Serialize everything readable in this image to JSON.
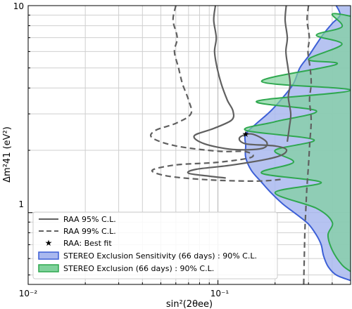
{
  "chart_data": {
    "type": "line",
    "x_axis": {
      "label": "sin²(2θee)",
      "scale": "log",
      "range": [
        0.01,
        0.5
      ],
      "major_ticks": [
        0.01,
        0.1
      ],
      "major_tick_labels": [
        "10⁻²",
        "10⁻¹"
      ]
    },
    "y_axis": {
      "label": "Δm²41 (eV²)",
      "scale": "log",
      "range": [
        0.45,
        10
      ],
      "major_ticks": [
        1,
        10
      ],
      "major_tick_labels": [
        "1",
        "10"
      ]
    },
    "grid": true,
    "legend_position": "bottom-left",
    "colors": {
      "raa": "#606060",
      "sensitivity_fill": "#a9b8ef",
      "sensitivity_edge": "#3c5fd6",
      "exclusion_fill": "#7fd19b",
      "exclusion_edge": "#2fa84f",
      "overlap_fill": "#76b6b8"
    },
    "series": [
      {
        "name": "RAA 95% C.L.",
        "style": "solid",
        "points": [
          [
            0.097,
            10
          ],
          [
            0.095,
            8.5
          ],
          [
            0.098,
            7.0
          ],
          [
            0.096,
            6.0
          ],
          [
            0.099,
            5.0
          ],
          [
            0.104,
            4.2
          ],
          [
            0.112,
            3.5
          ],
          [
            0.12,
            3.1
          ],
          [
            0.118,
            2.8
          ],
          [
            0.095,
            2.55
          ],
          [
            0.075,
            2.35
          ],
          [
            0.085,
            2.15
          ],
          [
            0.12,
            2.02
          ],
          [
            0.17,
            2.04
          ],
          [
            0.18,
            2.2
          ],
          [
            0.15,
            2.4
          ],
          [
            0.13,
            2.3
          ],
          [
            0.14,
            2.15
          ],
          [
            0.2,
            2.1
          ],
          [
            0.23,
            2.0
          ],
          [
            0.2,
            1.85
          ],
          [
            0.12,
            1.7
          ],
          [
            0.077,
            1.62
          ],
          [
            0.07,
            1.55
          ],
          [
            0.09,
            1.5
          ],
          [
            0.11,
            1.47
          ]
        ]
      },
      {
        "name": "RAA 95% C.L.",
        "style": "solid",
        "points": [
          [
            0.229,
            10
          ],
          [
            0.226,
            8.5
          ],
          [
            0.232,
            7.0
          ],
          [
            0.228,
            6.0
          ],
          [
            0.234,
            5.0
          ],
          [
            0.24,
            4.2
          ],
          [
            0.235,
            3.6
          ],
          [
            0.242,
            3.0
          ],
          [
            0.238,
            2.6
          ],
          [
            0.232,
            2.2
          ]
        ]
      },
      {
        "name": "RAA 99% C.L.",
        "style": "dashed",
        "points": [
          [
            0.06,
            10
          ],
          [
            0.058,
            8.5
          ],
          [
            0.061,
            7.0
          ],
          [
            0.059,
            6.0
          ],
          [
            0.062,
            5.0
          ],
          [
            0.065,
            4.2
          ],
          [
            0.07,
            3.5
          ],
          [
            0.072,
            3.0
          ],
          [
            0.06,
            2.7
          ],
          [
            0.047,
            2.5
          ],
          [
            0.045,
            2.3
          ],
          [
            0.06,
            2.1
          ],
          [
            0.1,
            1.98
          ],
          [
            0.14,
            1.97
          ],
          [
            0.15,
            1.85
          ],
          [
            0.1,
            1.75
          ],
          [
            0.06,
            1.7
          ],
          [
            0.045,
            1.6
          ],
          [
            0.055,
            1.5
          ],
          [
            0.09,
            1.44
          ],
          [
            0.16,
            1.42
          ],
          [
            0.22,
            1.45
          ]
        ]
      },
      {
        "name": "RAA 99% C.L.",
        "style": "dashed",
        "points": [
          [
            0.3,
            10
          ],
          [
            0.295,
            8.5
          ],
          [
            0.303,
            7.0
          ],
          [
            0.298,
            6.0
          ],
          [
            0.306,
            5.0
          ],
          [
            0.31,
            4.2
          ],
          [
            0.304,
            3.5
          ],
          [
            0.31,
            2.8
          ],
          [
            0.305,
            2.2
          ],
          [
            0.3,
            1.7
          ],
          [
            0.294,
            1.3
          ],
          [
            0.29,
            1.0
          ],
          [
            0.287,
            0.8
          ],
          [
            0.285,
            0.6
          ],
          [
            0.283,
            0.45
          ]
        ]
      },
      {
        "name": "RAA: Best fit",
        "style": "marker",
        "points": [
          [
            0.14,
            2.39
          ]
        ]
      },
      {
        "name": "STEREO Exclusion Sensitivity (66 days) : 90% C.L.",
        "style": "region",
        "boundary": [
          [
            0.42,
            10
          ],
          [
            0.44,
            9.0
          ],
          [
            0.4,
            8.2
          ],
          [
            0.36,
            7.3
          ],
          [
            0.33,
            6.5
          ],
          [
            0.3,
            5.7
          ],
          [
            0.27,
            5.0
          ],
          [
            0.25,
            4.2
          ],
          [
            0.22,
            3.6
          ],
          [
            0.19,
            3.1
          ],
          [
            0.16,
            2.7
          ],
          [
            0.14,
            2.39
          ],
          [
            0.14,
            2.1
          ],
          [
            0.14,
            1.85
          ],
          [
            0.15,
            1.6
          ],
          [
            0.17,
            1.4
          ],
          [
            0.19,
            1.25
          ],
          [
            0.22,
            1.1
          ],
          [
            0.26,
            0.98
          ],
          [
            0.3,
            0.88
          ],
          [
            0.33,
            0.78
          ],
          [
            0.35,
            0.7
          ],
          [
            0.36,
            0.62
          ],
          [
            0.38,
            0.55
          ],
          [
            0.42,
            0.5
          ],
          [
            0.5,
            0.47
          ]
        ]
      },
      {
        "name": "STEREO Exclusion (66 days) : 90% C.L.",
        "style": "region",
        "boundary": [
          [
            0.5,
            8.9
          ],
          [
            0.4,
            9.1
          ],
          [
            0.45,
            7.9
          ],
          [
            0.33,
            7.2
          ],
          [
            0.45,
            6.5
          ],
          [
            0.3,
            5.5
          ],
          [
            0.42,
            5.2
          ],
          [
            0.17,
            4.3
          ],
          [
            0.5,
            3.9
          ],
          [
            0.16,
            3.45
          ],
          [
            0.33,
            3.1
          ],
          [
            0.2,
            2.75
          ],
          [
            0.14,
            2.5
          ],
          [
            0.32,
            2.25
          ],
          [
            0.2,
            2.0
          ],
          [
            0.25,
            1.75
          ],
          [
            0.17,
            1.55
          ],
          [
            0.35,
            1.4
          ],
          [
            0.2,
            1.25
          ],
          [
            0.33,
            1.05
          ],
          [
            0.4,
            0.9
          ],
          [
            0.38,
            0.78
          ],
          [
            0.4,
            0.66
          ],
          [
            0.45,
            0.56
          ],
          [
            0.5,
            0.52
          ]
        ]
      }
    ],
    "legend": [
      "RAA 95% C.L.",
      "RAA 99% C.L.",
      "RAA: Best fit",
      "STEREO Exclusion Sensitivity (66 days) : 90% C.L.",
      "STEREO Exclusion (66 days) : 90% C.L."
    ]
  }
}
